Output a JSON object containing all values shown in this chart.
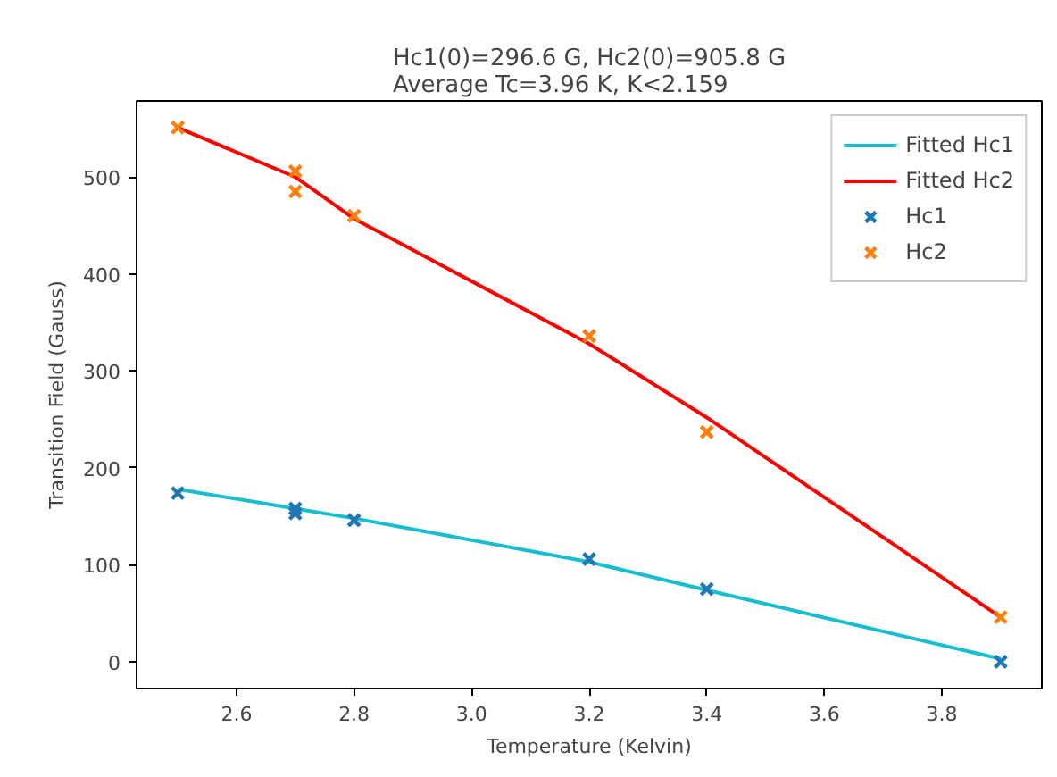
{
  "chart_data": {
    "type": "line",
    "title": "Hc1(0)=296.6 G, Hc2(0)=905.8 G\nAverage Tc=3.96 K, K<2.159",
    "xlabel": "Temperature (Kelvin)",
    "ylabel": "Transition Field (Gauss)",
    "xlim": [
      2.43,
      3.97
    ],
    "ylim": [
      -27.6,
      578.5
    ],
    "xticks": [
      2.6,
      2.8,
      {
        "value": 3.0,
        "label": "3.0"
      },
      3.2,
      3.4,
      3.6,
      3.8
    ],
    "yticks": [
      0,
      100,
      200,
      300,
      400,
      500
    ],
    "grid": false,
    "legend": "top right",
    "series": [
      {
        "name": "Fitted Hc1",
        "color": "#17becf",
        "marker": "none",
        "x": [
          2.5,
          2.7,
          2.8,
          3.2,
          3.4,
          3.9
        ],
        "values": [
          178,
          158,
          148,
          103,
          74,
          3
        ]
      },
      {
        "name": "Fitted Hc2",
        "color": "#ff0000",
        "marker": "none",
        "x": [
          2.5,
          2.7,
          2.8,
          3.2,
          3.4,
          3.9
        ],
        "values": [
          551,
          500,
          457,
          328,
          252,
          46
        ]
      },
      {
        "name": "Hc1",
        "type": "scatter",
        "color": "#1f77b4",
        "marker": "cross",
        "x": [
          2.5,
          2.7,
          2.7,
          2.8,
          3.2,
          3.4,
          3.9
        ],
        "values": [
          174,
          158,
          153,
          146,
          106,
          75,
          0
        ]
      },
      {
        "name": "Hc2",
        "type": "scatter",
        "color": "#ff7f0e",
        "marker": "cross",
        "x": [
          2.5,
          2.7,
          2.7,
          2.8,
          3.2,
          3.4,
          3.9
        ],
        "values": [
          551,
          506,
          485,
          460,
          336,
          237,
          46
        ]
      }
    ]
  }
}
